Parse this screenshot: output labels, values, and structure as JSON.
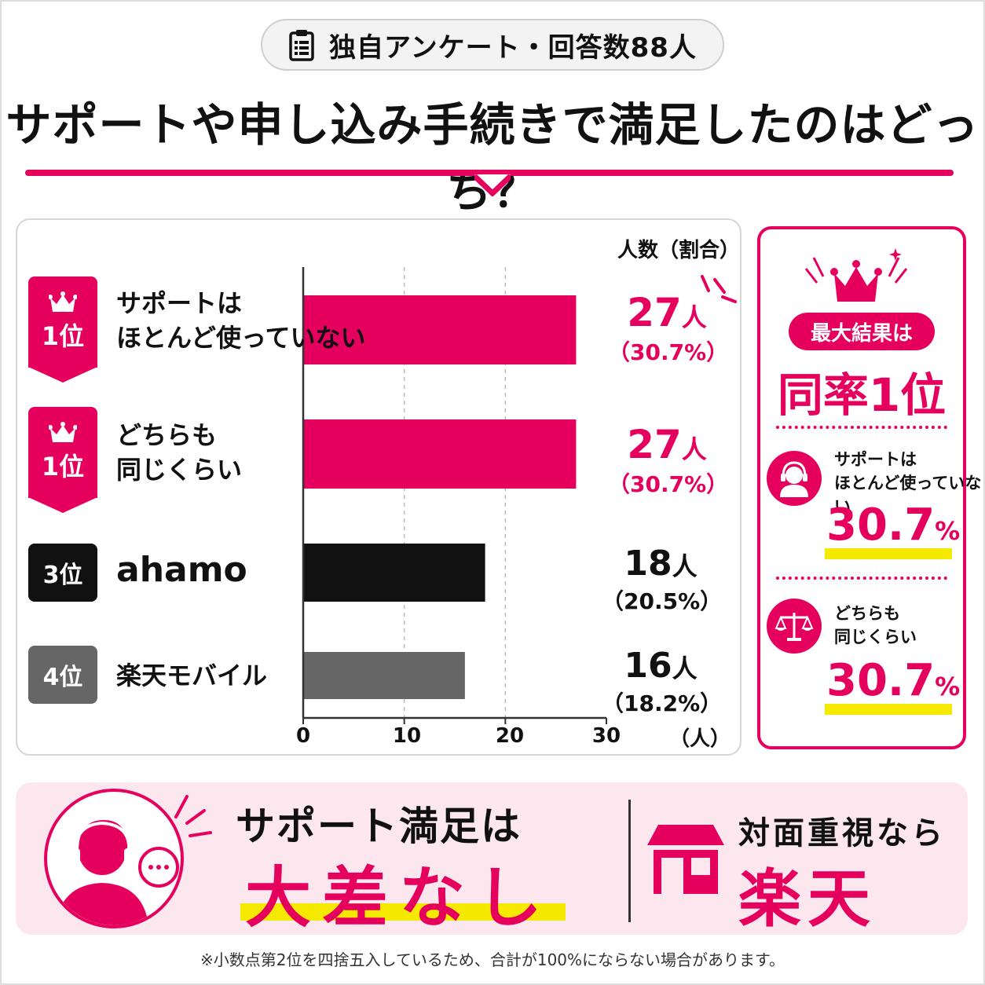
{
  "header": {
    "survey": "独自アンケート・回答数88人",
    "title": "サポートや申し込み手続きで満足したのはどっち？"
  },
  "chart_data": {
    "type": "bar",
    "orientation": "horizontal",
    "axis_title": "人数（割合）",
    "x_unit": "（人）",
    "xlim": [
      0,
      30
    ],
    "x_ticks": [
      "0",
      "10",
      "20",
      "30"
    ],
    "categories": [
      "サポートは\nほとんど使っていない",
      "どちらも\n同じくらい",
      "ahamo",
      "楽天モバイル"
    ],
    "values": [
      27,
      27,
      18,
      16
    ],
    "percent_labels": [
      "（30.7%）",
      "（30.7%）",
      "（20.5%）",
      "（18.2%）"
    ],
    "count_labels": [
      "27",
      "27",
      "18",
      "16"
    ],
    "count_unit": "人",
    "ranks": [
      "1位",
      "1位",
      "3位",
      "4位"
    ],
    "colors": [
      "#e6005e",
      "#e6005e",
      "#111111",
      "#666666"
    ],
    "grid": true
  },
  "side": {
    "pill": "最大結果は",
    "headline": "同率1位",
    "items": [
      {
        "label": "サポートは\nほとんど使っていない",
        "pct": "30.7",
        "pct_unit": "%",
        "icon": "headset-person-icon"
      },
      {
        "label": "どちらも\n同じくらい",
        "pct": "30.7",
        "pct_unit": "%",
        "icon": "balance-scale-icon"
      }
    ]
  },
  "bottom": {
    "line1": "サポート満足は",
    "line2": "大差なし",
    "shop_label": "対面重視なら",
    "shop_value": "楽天"
  },
  "footnote": "※小数点第2位を四捨五入しているため、合計が100%にならない場合があります。",
  "accent": "#e6005e",
  "highlight": "#f6e900"
}
